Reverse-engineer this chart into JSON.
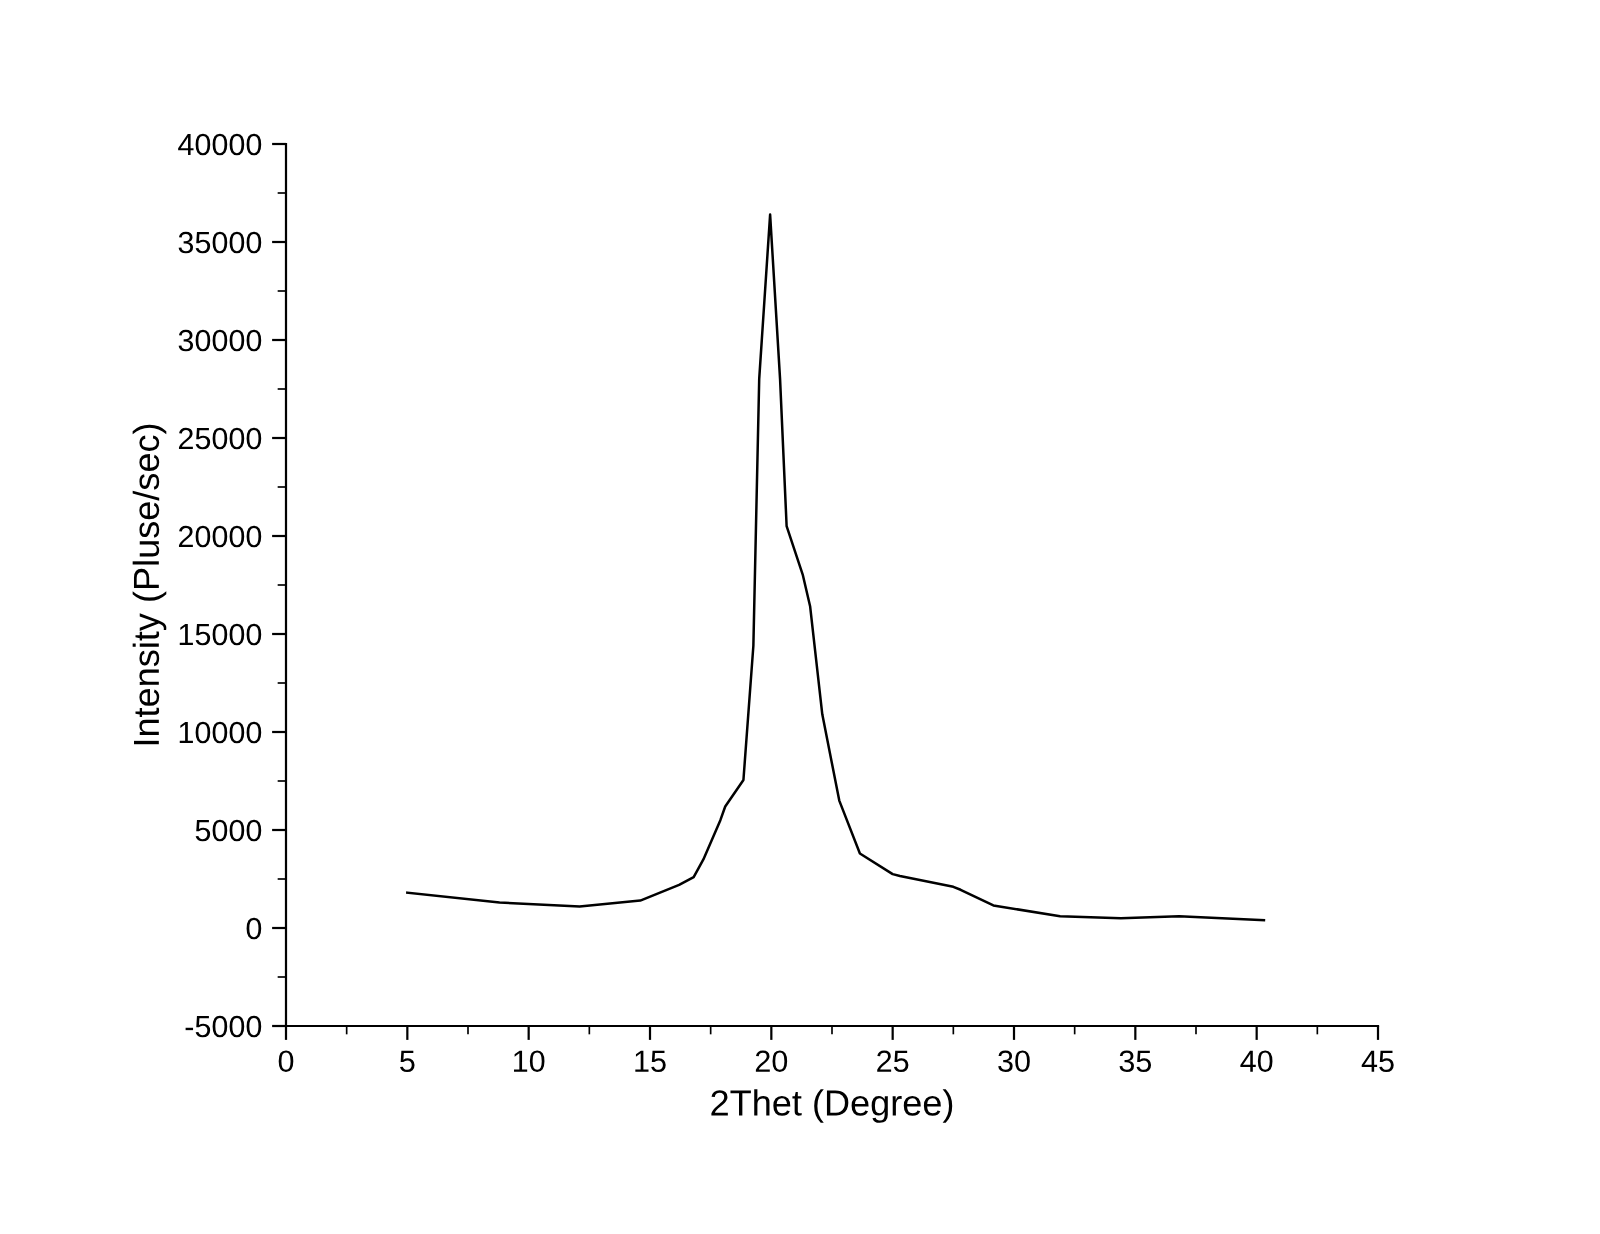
{
  "chart_data": {
    "type": "line",
    "xlabel": "2Thet (Degree)",
    "ylabel": "Intensity (Pluse/sec)",
    "series": [
      {
        "color": "#000000",
        "x": [
          5.0,
          8.8,
          12.1,
          14.6,
          16.2,
          16.8,
          17.2,
          17.9,
          18.1,
          18.85,
          19.26,
          19.5,
          19.95,
          20.36,
          20.63,
          21.3,
          21.6,
          22.1,
          22.8,
          23.65,
          25.0,
          25.3,
          27.5,
          27.8,
          29.15,
          31.9,
          34.4,
          36.8,
          40.3
        ],
        "values": [
          1800,
          1300,
          1100,
          1400,
          2200,
          2600,
          3500,
          5500,
          6200,
          7550,
          14400,
          28000,
          36400,
          28000,
          20500,
          18000,
          16400,
          10900,
          6500,
          3800,
          2750,
          2650,
          2100,
          1950,
          1150,
          600,
          500,
          600,
          400
        ]
      }
    ],
    "xlim": [
      0,
      45
    ],
    "xticks": [
      0,
      5,
      10,
      15,
      20,
      25,
      30,
      35,
      40,
      45
    ],
    "ylim": [
      -5000,
      40000
    ],
    "yticks": [
      -5000,
      0,
      5000,
      10000,
      15000,
      20000,
      25000,
      30000,
      35000,
      40000
    ],
    "grid": false,
    "legend": false,
    "line_style": "solid",
    "marker": "none"
  }
}
